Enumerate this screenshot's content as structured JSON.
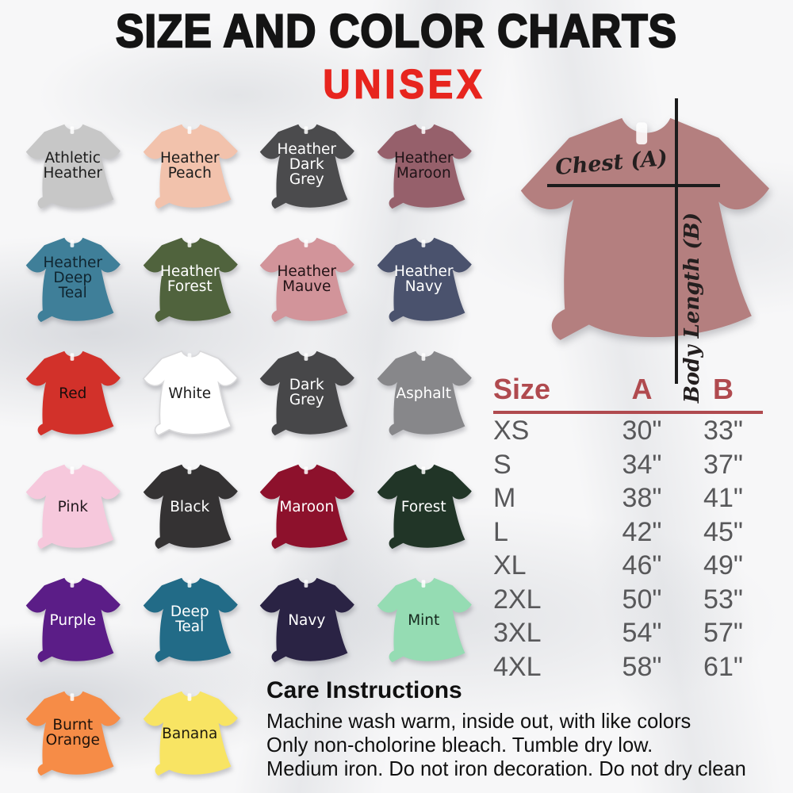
{
  "title": "SIZE AND COLOR CHARTS",
  "subtitle": "UNISEX",
  "colors": {
    "title": "#141414",
    "subtitle_red": "#e7251e",
    "table_header_red": "#b04a4f",
    "table_text_grey": "#58585a",
    "measure_line_black": "#1c1c1c"
  },
  "shirts": [
    {
      "name": "athletic-heather",
      "label": "Athletic\nHeather",
      "color": "#c7c7c7",
      "text_color": "#1c1c1c"
    },
    {
      "name": "heather-peach",
      "label": "Heather\nPeach",
      "color": "#f2c2ac",
      "text_color": "#1c1c1c"
    },
    {
      "name": "heather-dark-grey",
      "label": "Heather\nDark\nGrey",
      "color": "#4b4b4d",
      "text_color": "#ffffff"
    },
    {
      "name": "heather-maroon",
      "label": "Heather\nMaroon",
      "color": "#96606b",
      "text_color": "#1f1317"
    },
    {
      "name": "heather-deep-teal",
      "label": "Heather\nDeep\nTeal",
      "color": "#3f7f99",
      "text_color": "#102530"
    },
    {
      "name": "heather-forest",
      "label": "Heather\nForest",
      "color": "#50633d",
      "text_color": "#ffffff"
    },
    {
      "name": "heather-mauve",
      "label": "Heather\nMauve",
      "color": "#d2949a",
      "text_color": "#231316"
    },
    {
      "name": "heather-navy",
      "label": "Heather\nNavy",
      "color": "#4a526d",
      "text_color": "#ffffff"
    },
    {
      "name": "red",
      "label": "Red",
      "color": "#d2312a",
      "text_color": "#1a0d0c"
    },
    {
      "name": "white",
      "label": "White",
      "color": "#ffffff",
      "stroke": "#d8d8da",
      "text_color": "#1c1c1c"
    },
    {
      "name": "dark-grey",
      "label": "Dark\nGrey",
      "color": "#474749",
      "text_color": "#ffffff"
    },
    {
      "name": "asphalt",
      "label": "Asphalt",
      "color": "#87878a",
      "text_color": "#ffffff"
    },
    {
      "name": "pink",
      "label": "Pink",
      "color": "#f6c8dc",
      "text_color": "#22191e"
    },
    {
      "name": "black",
      "label": "Black",
      "color": "#343233",
      "text_color": "#ffffff"
    },
    {
      "name": "maroon",
      "label": "Maroon",
      "color": "#8d112c",
      "text_color": "#ffffff"
    },
    {
      "name": "forest",
      "label": "Forest",
      "color": "#213527",
      "text_color": "#ffffff"
    },
    {
      "name": "purple",
      "label": "Purple",
      "color": "#5b1d87",
      "text_color": "#ffffff"
    },
    {
      "name": "deep-teal",
      "label": "Deep\nTeal",
      "color": "#226b87",
      "text_color": "#ffffff"
    },
    {
      "name": "navy",
      "label": "Navy",
      "color": "#2a2344",
      "text_color": "#ffffff"
    },
    {
      "name": "mint",
      "label": "Mint",
      "color": "#95dcb3",
      "text_color": "#15281d"
    },
    {
      "name": "burnt-orange",
      "label": "Burnt\nOrange",
      "color": "#f68c47",
      "text_color": "#20130b"
    },
    {
      "name": "banana",
      "label": "Banana",
      "color": "#f8e463",
      "text_color": "#1f1b0e"
    }
  ],
  "measure_shirt": {
    "color": "#b47f7f",
    "chest_label": "Chest (A)",
    "body_length_label": "Body Length (B)"
  },
  "size_table": {
    "headers": [
      "Size",
      "A",
      "B"
    ],
    "rows": [
      [
        "XS",
        "30\"",
        "33\""
      ],
      [
        "S",
        "34\"",
        "37\""
      ],
      [
        "M",
        "38\"",
        "41\""
      ],
      [
        "L",
        "42\"",
        "45\""
      ],
      [
        "XL",
        "46\"",
        "49\""
      ],
      [
        "2XL",
        "50\"",
        "53\""
      ],
      [
        "3XL",
        "54\"",
        "57\""
      ],
      [
        "4XL",
        "58\"",
        "61\""
      ]
    ]
  },
  "care": {
    "heading": "Care Instructions",
    "lines": [
      "Machine wash warm, inside out, with like colors",
      "Only non-cholorine bleach. Tumble dry low.",
      "Medium iron. Do not iron decoration. Do not dry clean"
    ]
  }
}
